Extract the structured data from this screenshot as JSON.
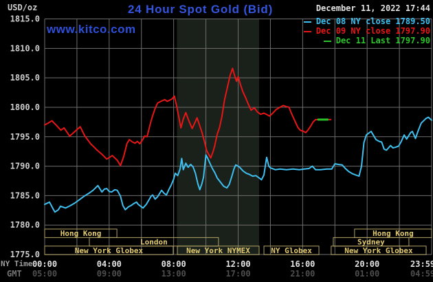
{
  "header": {
    "units_label": "USD/oz",
    "title": "24 Hour Spot Gold (Bid)",
    "watermark": "www.kitco.com",
    "datetime": "December 11, 2022 17:44",
    "legend": [
      {
        "label": "Dec 08 NY close 1789.50",
        "color": "#3fc0f0"
      },
      {
        "label": "Dec 09 NY close 1797.90",
        "color": "#e81717"
      },
      {
        "label": "Dec 11 Last 1797.90",
        "color": "#2bc52b"
      }
    ]
  },
  "axes": {
    "ny_time_label": "NY Time",
    "gmt_label": "GMT"
  },
  "colors": {
    "background": "#000000",
    "grid": "#6f6f6f",
    "highlight_band": "#1a201a",
    "y_tick_text": "#cfcfcf",
    "x_tick_ny_text": "#e4e4e4",
    "x_tick_gmt_text": "#4f4f4f",
    "session_border": "#b3a363",
    "session_text": "#e2cb70"
  },
  "chart_data": {
    "type": "line",
    "title": "24 Hour Spot Gold (Bid)",
    "ylabel": "USD/oz",
    "ylim": [
      1775,
      1815
    ],
    "ytick_step": 5,
    "yticks": [
      1815,
      1810,
      1805,
      1800,
      1795,
      1790,
      1785,
      1780,
      1775
    ],
    "x_hours_range": [
      0,
      24
    ],
    "x_grid_step_hours": 2,
    "x_labels_ny": [
      {
        "hour": 0,
        "text": "00:00"
      },
      {
        "hour": 4,
        "text": "04:00"
      },
      {
        "hour": 8,
        "text": "08:00"
      },
      {
        "hour": 12,
        "text": "12:00"
      },
      {
        "hour": 16,
        "text": "16:00"
      },
      {
        "hour": 20,
        "text": "20:00"
      },
      {
        "hour": 23.45,
        "text": "23:59"
      }
    ],
    "x_labels_gmt": [
      {
        "hour": 0,
        "text": "05:00"
      },
      {
        "hour": 4,
        "text": "09:00"
      },
      {
        "hour": 8,
        "text": "13:00"
      },
      {
        "hour": 12,
        "text": "17:00"
      },
      {
        "hour": 16,
        "text": "21:00"
      },
      {
        "hour": 20,
        "text": "01:00"
      },
      {
        "hour": 23.45,
        "text": "04:59"
      }
    ],
    "highlight_band_hours": [
      8.2,
      13.3
    ],
    "legend_position": "top-right",
    "grid": true,
    "series": [
      {
        "name": "Dec 08",
        "color": "#3fc0f0",
        "width": 2,
        "points": [
          [
            0,
            1783.5
          ],
          [
            0.3,
            1783.9
          ],
          [
            0.55,
            1782.6
          ],
          [
            0.64,
            1782.2
          ],
          [
            0.85,
            1782.6
          ],
          [
            0.98,
            1783.2
          ],
          [
            1.3,
            1782.9
          ],
          [
            1.6,
            1783.3
          ],
          [
            1.85,
            1783.7
          ],
          [
            2.15,
            1784.3
          ],
          [
            2.45,
            1784.9
          ],
          [
            2.75,
            1785.4
          ],
          [
            3.0,
            1785.9
          ],
          [
            3.3,
            1786.7
          ],
          [
            3.55,
            1785.6
          ],
          [
            3.7,
            1786.1
          ],
          [
            3.85,
            1786.2
          ],
          [
            4.0,
            1785.7
          ],
          [
            4.15,
            1785.6
          ],
          [
            4.35,
            1786.0
          ],
          [
            4.5,
            1785.9
          ],
          [
            4.7,
            1784.9
          ],
          [
            4.85,
            1783.3
          ],
          [
            5.0,
            1782.6
          ],
          [
            5.2,
            1783.1
          ],
          [
            5.35,
            1783.3
          ],
          [
            5.5,
            1783.6
          ],
          [
            5.7,
            1783.9
          ],
          [
            5.8,
            1783.5
          ],
          [
            5.95,
            1783.2
          ],
          [
            6.1,
            1782.9
          ],
          [
            6.3,
            1783.5
          ],
          [
            6.45,
            1784.2
          ],
          [
            6.6,
            1784.9
          ],
          [
            6.7,
            1785.1
          ],
          [
            6.85,
            1784.4
          ],
          [
            7.0,
            1784.8
          ],
          [
            7.25,
            1785.9
          ],
          [
            7.4,
            1785.4
          ],
          [
            7.55,
            1785.1
          ],
          [
            7.7,
            1786.0
          ],
          [
            7.85,
            1786.8
          ],
          [
            8.0,
            1787.8
          ],
          [
            8.1,
            1788.8
          ],
          [
            8.25,
            1788.4
          ],
          [
            8.4,
            1789.5
          ],
          [
            8.5,
            1791.3
          ],
          [
            8.6,
            1789.4
          ],
          [
            8.75,
            1790.5
          ],
          [
            8.9,
            1789.8
          ],
          [
            9.05,
            1790.3
          ],
          [
            9.2,
            1789.9
          ],
          [
            9.35,
            1788.8
          ],
          [
            9.5,
            1787.0
          ],
          [
            9.62,
            1786.0
          ],
          [
            9.75,
            1787.0
          ],
          [
            9.85,
            1788.1
          ],
          [
            10.0,
            1791.9
          ],
          [
            10.1,
            1791.4
          ],
          [
            10.25,
            1790.5
          ],
          [
            10.4,
            1789.6
          ],
          [
            10.55,
            1788.9
          ],
          [
            10.7,
            1788.0
          ],
          [
            10.9,
            1787.3
          ],
          [
            11.1,
            1786.6
          ],
          [
            11.3,
            1786.3
          ],
          [
            11.45,
            1786.9
          ],
          [
            11.6,
            1788.2
          ],
          [
            11.75,
            1789.6
          ],
          [
            11.85,
            1790.2
          ],
          [
            12.0,
            1790.0
          ],
          [
            12.1,
            1789.8
          ],
          [
            12.3,
            1789.2
          ],
          [
            12.5,
            1788.8
          ],
          [
            12.7,
            1788.6
          ],
          [
            12.9,
            1788.3
          ],
          [
            13.1,
            1788.4
          ],
          [
            13.3,
            1788.0
          ],
          [
            13.45,
            1787.7
          ],
          [
            13.6,
            1788.5
          ],
          [
            13.77,
            1791.5
          ],
          [
            13.9,
            1790.0
          ],
          [
            14.0,
            1789.7
          ],
          [
            14.3,
            1789.4
          ],
          [
            14.6,
            1789.5
          ],
          [
            15.0,
            1789.4
          ],
          [
            15.4,
            1789.5
          ],
          [
            15.8,
            1789.4
          ],
          [
            16.1,
            1789.5
          ],
          [
            16.4,
            1789.6
          ],
          [
            16.6,
            1790.0
          ],
          [
            16.8,
            1789.4
          ],
          [
            17.1,
            1789.4
          ],
          [
            17.5,
            1789.5
          ],
          [
            17.8,
            1789.5
          ],
          [
            18.0,
            1790.4
          ],
          [
            18.2,
            1790.3
          ],
          [
            18.45,
            1790.2
          ],
          [
            18.65,
            1789.6
          ],
          [
            18.85,
            1789.1
          ],
          [
            19.1,
            1788.7
          ],
          [
            19.3,
            1788.5
          ],
          [
            19.5,
            1788.3
          ],
          [
            19.65,
            1790.0
          ],
          [
            19.8,
            1794.0
          ],
          [
            19.95,
            1795.3
          ],
          [
            20.1,
            1795.6
          ],
          [
            20.25,
            1795.9
          ],
          [
            20.4,
            1795.2
          ],
          [
            20.55,
            1794.5
          ],
          [
            20.75,
            1794.2
          ],
          [
            20.9,
            1794.1
          ],
          [
            21.05,
            1792.9
          ],
          [
            21.2,
            1792.7
          ],
          [
            21.45,
            1793.5
          ],
          [
            21.6,
            1793.1
          ],
          [
            21.75,
            1793.2
          ],
          [
            21.95,
            1793.4
          ],
          [
            22.1,
            1794.1
          ],
          [
            22.3,
            1795.3
          ],
          [
            22.45,
            1794.6
          ],
          [
            22.7,
            1795.7
          ],
          [
            22.8,
            1795.9
          ],
          [
            23.0,
            1794.7
          ],
          [
            23.15,
            1795.9
          ],
          [
            23.35,
            1797.3
          ],
          [
            23.65,
            1798.1
          ],
          [
            23.8,
            1798.3
          ],
          [
            24,
            1797.8
          ]
        ]
      },
      {
        "name": "Dec 09",
        "color": "#e81717",
        "width": 2,
        "points": [
          [
            0,
            1797.0
          ],
          [
            0.2,
            1797.3
          ],
          [
            0.45,
            1797.7
          ],
          [
            0.7,
            1797.0
          ],
          [
            1.0,
            1796.1
          ],
          [
            1.2,
            1796.5
          ],
          [
            1.55,
            1795.1
          ],
          [
            1.8,
            1795.7
          ],
          [
            2.0,
            1796.2
          ],
          [
            2.2,
            1796.7
          ],
          [
            2.5,
            1795.1
          ],
          [
            2.85,
            1793.8
          ],
          [
            3.3,
            1792.6
          ],
          [
            3.6,
            1791.9
          ],
          [
            3.85,
            1791.2
          ],
          [
            4.2,
            1791.8
          ],
          [
            4.5,
            1791.0
          ],
          [
            4.7,
            1790.1
          ],
          [
            4.9,
            1791.6
          ],
          [
            5.1,
            1793.8
          ],
          [
            5.25,
            1794.5
          ],
          [
            5.45,
            1794.1
          ],
          [
            5.6,
            1793.9
          ],
          [
            5.75,
            1794.2
          ],
          [
            5.9,
            1793.8
          ],
          [
            6.1,
            1794.6
          ],
          [
            6.2,
            1795.1
          ],
          [
            6.35,
            1795.0
          ],
          [
            6.55,
            1797.2
          ],
          [
            6.7,
            1798.6
          ],
          [
            6.85,
            1799.8
          ],
          [
            7.0,
            1800.7
          ],
          [
            7.2,
            1801.0
          ],
          [
            7.45,
            1801.3
          ],
          [
            7.6,
            1801.0
          ],
          [
            7.75,
            1801.2
          ],
          [
            7.9,
            1801.4
          ],
          [
            8.05,
            1801.9
          ],
          [
            8.2,
            1800.0
          ],
          [
            8.45,
            1796.5
          ],
          [
            8.6,
            1798.0
          ],
          [
            8.75,
            1799.1
          ],
          [
            8.9,
            1798.0
          ],
          [
            9.05,
            1797.0
          ],
          [
            9.15,
            1796.4
          ],
          [
            9.3,
            1797.3
          ],
          [
            9.45,
            1798.2
          ],
          [
            9.6,
            1797.0
          ],
          [
            9.75,
            1795.8
          ],
          [
            9.9,
            1794.3
          ],
          [
            10.05,
            1792.6
          ],
          [
            10.3,
            1791.4
          ],
          [
            10.45,
            1792.5
          ],
          [
            10.55,
            1793.5
          ],
          [
            10.7,
            1795.4
          ],
          [
            10.85,
            1796.6
          ],
          [
            11.0,
            1798.5
          ],
          [
            11.15,
            1801.2
          ],
          [
            11.3,
            1803.0
          ],
          [
            11.5,
            1805.4
          ],
          [
            11.65,
            1806.6
          ],
          [
            11.8,
            1805.2
          ],
          [
            11.9,
            1804.4
          ],
          [
            12.0,
            1805.2
          ],
          [
            12.15,
            1803.8
          ],
          [
            12.3,
            1802.6
          ],
          [
            12.45,
            1801.7
          ],
          [
            12.6,
            1800.7
          ],
          [
            12.8,
            1799.5
          ],
          [
            13.0,
            1799.9
          ],
          [
            13.2,
            1799.2
          ],
          [
            13.4,
            1798.8
          ],
          [
            13.6,
            1799.0
          ],
          [
            13.75,
            1798.8
          ],
          [
            13.95,
            1798.5
          ],
          [
            14.15,
            1799.0
          ],
          [
            14.35,
            1799.6
          ],
          [
            14.6,
            1800.0
          ],
          [
            14.8,
            1800.3
          ],
          [
            15.0,
            1800.1
          ],
          [
            15.15,
            1800.0
          ],
          [
            15.3,
            1799.0
          ],
          [
            15.5,
            1797.8
          ],
          [
            15.7,
            1796.6
          ],
          [
            15.85,
            1796.1
          ],
          [
            16.05,
            1795.9
          ],
          [
            16.2,
            1795.7
          ],
          [
            16.35,
            1796.2
          ],
          [
            16.5,
            1796.8
          ],
          [
            16.65,
            1797.5
          ],
          [
            16.8,
            1797.9
          ],
          [
            17.75,
            1797.9
          ]
        ]
      },
      {
        "name": "Dec 11 Last",
        "color": "#2bc52b",
        "width": 3,
        "points": [
          [
            16.97,
            1797.9
          ],
          [
            17.55,
            1797.9
          ]
        ]
      }
    ],
    "sessions": [
      {
        "row": 0,
        "label": "Hong Kong",
        "start_hour": 0.0,
        "end_hour": 4.48
      },
      {
        "row": 0,
        "label": "Hong Kong",
        "start_hour": 19.22,
        "end_hour": 24.0
      },
      {
        "row": 1,
        "label": "London",
        "start_hour": 2.77,
        "end_hour": 10.78
      },
      {
        "row": 1,
        "label": "Sydney",
        "start_hour": 17.9,
        "end_hour": 22.59
      },
      {
        "row": 2,
        "label": "New York Globex",
        "start_hour": 0.0,
        "end_hour": 7.97
      },
      {
        "row": 2,
        "label": "New York NYMEX",
        "start_hour": 8.23,
        "end_hour": 13.3
      },
      {
        "row": 2,
        "label": "NY Globex",
        "start_hour": 13.6,
        "end_hour": 17.01
      },
      {
        "row": 2,
        "label": "New York Globex",
        "start_hour": 17.77,
        "end_hour": 23.66
      }
    ]
  }
}
